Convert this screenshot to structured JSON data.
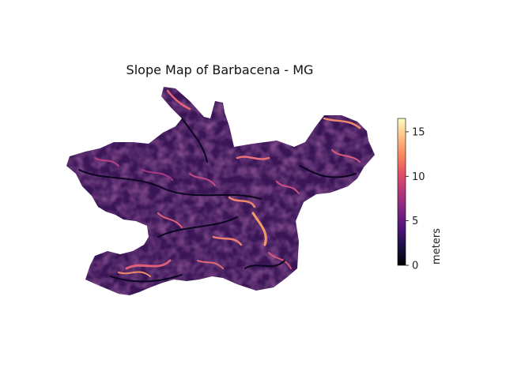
{
  "title": "Slope Map of Barbacena - MG",
  "colorbar": {
    "label": "meters",
    "colormap": "magma",
    "range": [
      0,
      16.5
    ],
    "ticks": [
      "0",
      "5",
      "10",
      "15"
    ],
    "tick_values": [
      0,
      5,
      10,
      15
    ]
  }
}
